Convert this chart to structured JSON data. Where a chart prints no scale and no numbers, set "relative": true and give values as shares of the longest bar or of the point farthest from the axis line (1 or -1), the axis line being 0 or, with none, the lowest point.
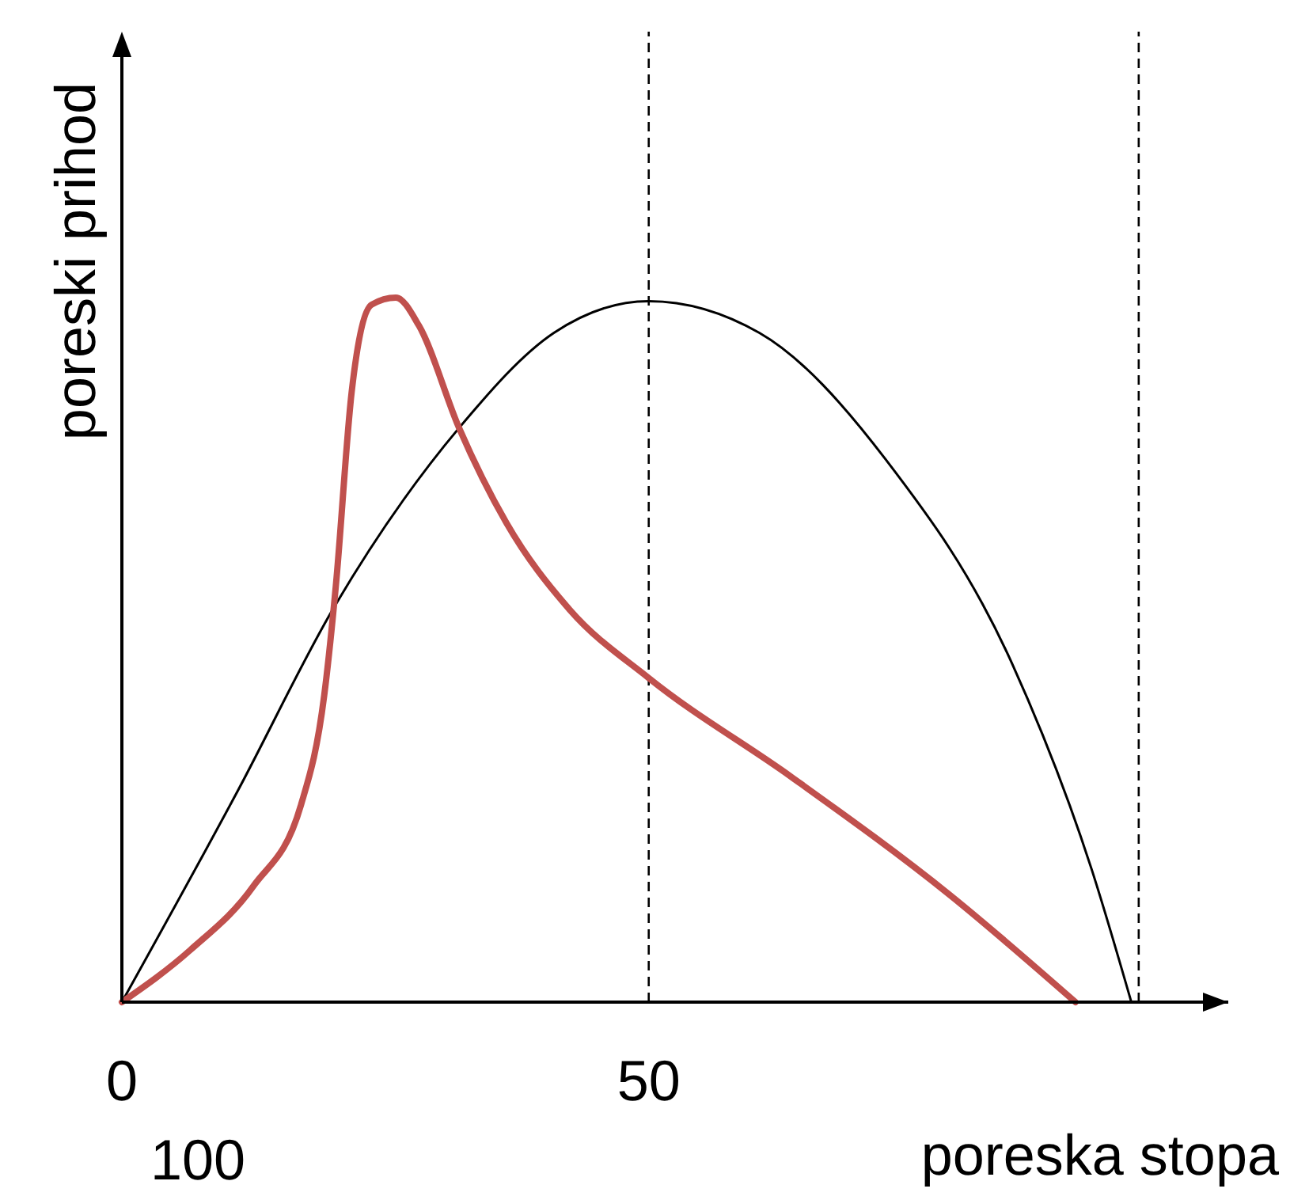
{
  "chart_data": {
    "type": "line",
    "relative": true,
    "xlabel": "poreska stopa",
    "ylabel": "poreski prihod",
    "xlim": [
      0,
      105
    ],
    "xticks": [
      0,
      50
    ],
    "tick_labels": "x",
    "grid": false,
    "marker": "none",
    "ref_lines": [
      {
        "axis": "x",
        "value": 50,
        "line_style": "dashed",
        "color": "#000000"
      },
      {
        "axis": "x",
        "value": 96.5,
        "line_style": "dashed",
        "color": "#000000"
      }
    ],
    "annotations": [
      "100"
    ],
    "series": [
      {
        "color": "#000000",
        "x": [
          0,
          11,
          20,
          32,
          41,
          50,
          60.5,
          72.5,
          84.5,
          92,
          95.8
        ],
        "values": [
          0,
          0.3,
          0.557,
          0.815,
          0.95,
          0.995,
          0.95,
          0.77,
          0.48,
          0.19,
          0
        ]
      },
      {
        "color": "#c0504d",
        "x": [
          0,
          6.5,
          12.5,
          17,
          19.2,
          20.3,
          21.8,
          23.7,
          26,
          28.2,
          32,
          36.5,
          42.5,
          50,
          63.5,
          78.5,
          90.5
        ],
        "values": [
          0,
          0.074,
          0.165,
          0.28,
          0.435,
          0.59,
          0.865,
          0.99,
          1,
          0.96,
          0.815,
          0.68,
          0.557,
          0.46,
          0.32,
          0.153,
          0
        ]
      }
    ]
  }
}
